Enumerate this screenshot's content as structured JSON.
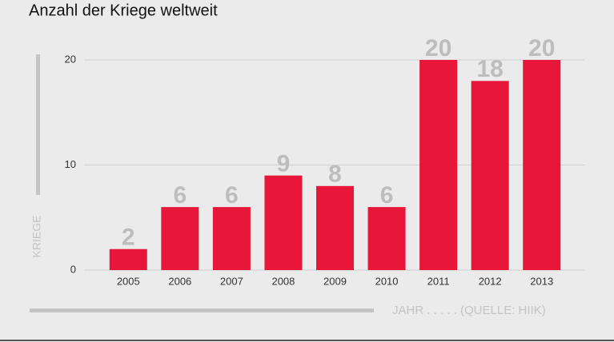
{
  "chart_data": {
    "type": "bar",
    "title": "Anzahl der Kriege weltweit",
    "categories": [
      "2005",
      "2006",
      "2007",
      "2008",
      "2009",
      "2010",
      "2011",
      "2012",
      "2013"
    ],
    "values": [
      2,
      6,
      6,
      9,
      8,
      6,
      20,
      18,
      20
    ],
    "color": "#e8173a",
    "ylim": [
      0,
      20
    ],
    "yticks": [
      0,
      10,
      20
    ],
    "grid": true,
    "ylabel": "KRIEGE",
    "xlabel": "JAHR . . . . . (QUELLE: HIIK)"
  }
}
